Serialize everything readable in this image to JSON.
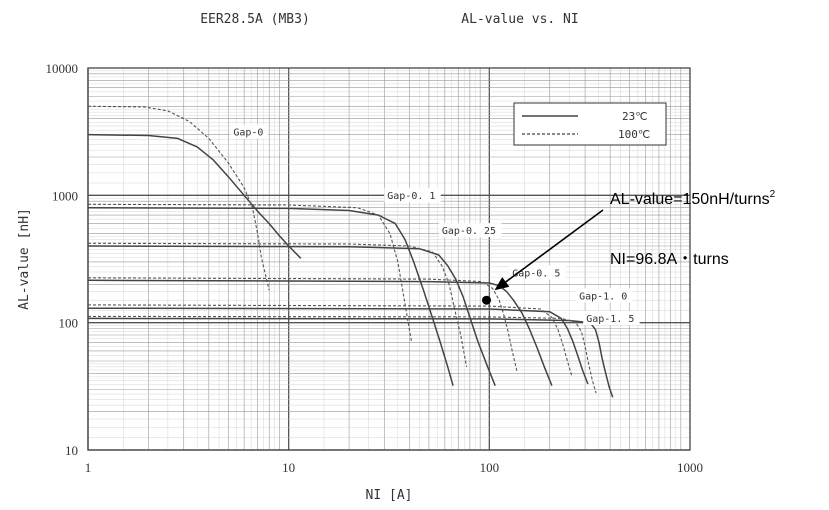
{
  "chart_data": {
    "type": "line",
    "title_left": "EER28.5A (MB3)",
    "title_right": "AL-value vs. NI",
    "xlabel": "NI [A]",
    "ylabel": "AL-value [nH]",
    "x_scale": "log",
    "y_scale": "log",
    "xlim": [
      1,
      1000
    ],
    "ylim": [
      10,
      10000
    ],
    "x_ticks": [
      "1",
      "10",
      "100",
      "1000"
    ],
    "y_ticks": [
      "10",
      "100",
      "1000",
      "10000"
    ],
    "grid": true,
    "legend": {
      "position": "top-right",
      "entries": [
        {
          "label": "23℃",
          "style": "solid"
        },
        {
          "label": "100℃",
          "style": "dashed"
        }
      ]
    },
    "series": [
      {
        "name": "Gap-0",
        "temp": "23℃",
        "style": "solid",
        "x": [
          1,
          2,
          2.8,
          3.5,
          4.2,
          5,
          6,
          7,
          8,
          9,
          10,
          11.5
        ],
        "y": [
          3000,
          2950,
          2800,
          2400,
          1900,
          1400,
          1000,
          750,
          600,
          480,
          400,
          320
        ]
      },
      {
        "name": "Gap-0",
        "temp": "100℃",
        "style": "dashed",
        "x": [
          1,
          1.9,
          2.5,
          3.2,
          4,
          5,
          6,
          6.6,
          7,
          7.3,
          7.7,
          8
        ],
        "y": [
          5000,
          4950,
          4600,
          3800,
          2800,
          1800,
          1150,
          800,
          500,
          330,
          230,
          180
        ]
      },
      {
        "name": "Gap-0.1",
        "temp": "23℃",
        "style": "solid",
        "x": [
          1,
          10,
          20,
          28,
          34,
          38,
          42,
          47,
          52,
          57,
          62,
          66
        ],
        "y": [
          800,
          790,
          760,
          700,
          600,
          450,
          300,
          180,
          110,
          70,
          45,
          32
        ]
      },
      {
        "name": "Gap-0.1",
        "temp": "100℃",
        "style": "dashed",
        "x": [
          1,
          10,
          22,
          28,
          32,
          35,
          37,
          39,
          41
        ],
        "y": [
          850,
          840,
          800,
          700,
          500,
          300,
          180,
          110,
          70
        ]
      },
      {
        "name": "Gap-0.25",
        "temp": "23℃",
        "style": "solid",
        "x": [
          1,
          20,
          45,
          56,
          62,
          68,
          74,
          80,
          88,
          98,
          107
        ],
        "y": [
          400,
          395,
          380,
          340,
          280,
          220,
          160,
          110,
          70,
          45,
          32
        ]
      },
      {
        "name": "Gap-0.25",
        "temp": "100℃",
        "style": "dashed",
        "x": [
          1,
          20,
          40,
          52,
          58,
          63,
          67,
          72,
          77
        ],
        "y": [
          420,
          415,
          400,
          360,
          280,
          200,
          130,
          80,
          45
        ]
      },
      {
        "name": "Gap-0.5",
        "temp": "23℃",
        "style": "solid",
        "x": [
          1,
          50,
          100,
          112,
          122,
          132,
          145,
          158,
          172,
          188,
          205
        ],
        "y": [
          215,
          210,
          205,
          195,
          175,
          150,
          120,
          90,
          65,
          45,
          32
        ]
      },
      {
        "name": "Gap-0.5",
        "temp": "100℃",
        "style": "dashed",
        "x": [
          1,
          50,
          92,
          104,
          112,
          118,
          124,
          130,
          137
        ],
        "y": [
          225,
          220,
          210,
          185,
          150,
          115,
          85,
          60,
          42
        ]
      },
      {
        "name": "Gap-1.0",
        "temp": "23℃",
        "style": "solid",
        "x": [
          1,
          100,
          200,
          228,
          245,
          260,
          276,
          292,
          310
        ],
        "y": [
          130,
          128,
          122,
          108,
          90,
          72,
          55,
          42,
          33
        ]
      },
      {
        "name": "Gap-1.0",
        "temp": "100℃",
        "style": "dashed",
        "x": [
          1,
          100,
          180,
          205,
          220,
          232,
          245,
          258
        ],
        "y": [
          138,
          135,
          128,
          110,
          88,
          68,
          50,
          38
        ]
      },
      {
        "name": "Gap-1.5",
        "temp": "23℃",
        "style": "solid",
        "x": [
          1,
          100,
          250,
          318,
          338,
          352,
          365,
          380,
          396,
          412
        ],
        "y": [
          108,
          107,
          104,
          100,
          88,
          70,
          52,
          40,
          31,
          26
        ]
      },
      {
        "name": "Gap-1.5",
        "temp": "100℃",
        "style": "dashed",
        "x": [
          1,
          100,
          230,
          270,
          288,
          300,
          312,
          325,
          340
        ],
        "y": [
          112,
          111,
          108,
          100,
          85,
          65,
          48,
          36,
          28
        ]
      }
    ],
    "gap_labels": [
      {
        "text": "Gap-0",
        "x": 5.3,
        "y": 3000
      },
      {
        "text": "Gap-0. 1",
        "x": 31,
        "y": 950
      },
      {
        "text": "Gap-0. 25",
        "x": 58,
        "y": 505
      },
      {
        "text": "Gap-0. 5",
        "x": 130,
        "y": 235
      },
      {
        "text": "Gap-1. 0",
        "x": 280,
        "y": 155
      },
      {
        "text": "Gap-1. 5",
        "x": 304,
        "y": 103
      }
    ],
    "annotation": {
      "text1": "AL-value=150nH/turns",
      "sup": "2",
      "text2": "NI=96.8A・turns",
      "point": {
        "x": 96.8,
        "y": 150
      }
    }
  }
}
